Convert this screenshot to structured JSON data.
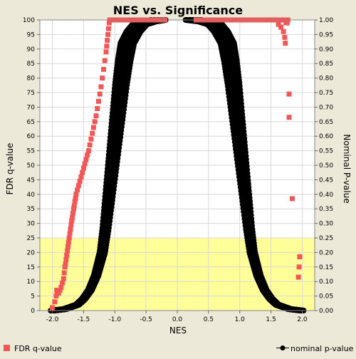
{
  "chart_data": {
    "type": "scatter",
    "title": "NES vs. Significance",
    "xlabel": "NES",
    "ylabel_left": "FDR q-value",
    "ylabel_right": "Nominal P-value",
    "xlim": [
      -2.2,
      2.2
    ],
    "ylim_left": [
      0,
      100
    ],
    "ylim_right": [
      0,
      1.0
    ],
    "x_ticks": [
      -2.0,
      -1.5,
      -1.0,
      -0.5,
      0.0,
      0.5,
      1.0,
      1.5,
      2.0
    ],
    "x_tick_labels": [
      "-2.0",
      "-1.5",
      "-1.0",
      "-0.5",
      "0.0",
      "0.5",
      "1.0",
      "1.5",
      "2.0"
    ],
    "y_left_ticks": [
      0,
      5,
      10,
      15,
      20,
      25,
      30,
      35,
      40,
      45,
      50,
      55,
      60,
      65,
      70,
      75,
      80,
      85,
      90,
      95,
      100
    ],
    "y_left_tick_labels": [
      "0",
      "5",
      "10",
      "15",
      "20",
      "25",
      "30",
      "35",
      "40",
      "45",
      "50",
      "55",
      "60",
      "65",
      "70",
      "75",
      "80",
      "85",
      "90",
      "95",
      "100"
    ],
    "y_right_ticks": [
      0,
      0.05,
      0.1,
      0.15,
      0.2,
      0.25,
      0.3,
      0.35,
      0.4,
      0.45,
      0.5,
      0.55,
      0.6,
      0.65,
      0.7,
      0.75,
      0.8,
      0.85,
      0.9,
      0.95,
      1.0
    ],
    "y_right_tick_labels": [
      "0.00",
      "0.05",
      "0.10",
      "0.15",
      "0.20",
      "0.25",
      "0.30",
      "0.35",
      "0.40",
      "0.45",
      "0.50",
      "0.55",
      "0.60",
      "0.65",
      "0.70",
      "0.75",
      "0.80",
      "0.85",
      "0.90",
      "0.95",
      "1.00"
    ],
    "highlight_band": {
      "y_from": 0,
      "y_to": 25,
      "color": "#ffff99"
    },
    "grid": true,
    "legend_placement": "bottom",
    "series": [
      {
        "name": "FDR q-value",
        "color": "#f25757",
        "marker": "square",
        "axis": "left",
        "points": [
          [
            -2.0,
            1
          ],
          [
            -1.96,
            3
          ],
          [
            -1.94,
            5
          ],
          [
            -1.93,
            7
          ],
          [
            -1.92,
            6
          ],
          [
            -1.91,
            6.5
          ],
          [
            -1.9,
            6
          ],
          [
            -1.88,
            7
          ],
          [
            -1.86,
            8
          ],
          [
            -1.84,
            9.5
          ],
          [
            -1.82,
            11
          ],
          [
            -1.81,
            13
          ],
          [
            -1.8,
            15
          ],
          [
            -1.79,
            16
          ],
          [
            -1.78,
            17.5
          ],
          [
            -1.77,
            19
          ],
          [
            -1.76,
            20.5
          ],
          [
            -1.75,
            22
          ],
          [
            -1.74,
            23.5
          ],
          [
            -1.73,
            25
          ],
          [
            -1.72,
            26.5
          ],
          [
            -1.71,
            28
          ],
          [
            -1.7,
            29.5
          ],
          [
            -1.69,
            31
          ],
          [
            -1.68,
            32
          ],
          [
            -1.67,
            33.5
          ],
          [
            -1.66,
            35
          ],
          [
            -1.65,
            36
          ],
          [
            -1.64,
            37.5
          ],
          [
            -1.63,
            38.5
          ],
          [
            -1.62,
            40
          ],
          [
            -1.6,
            41.5
          ],
          [
            -1.58,
            43
          ],
          [
            -1.56,
            44.5
          ],
          [
            -1.54,
            46
          ],
          [
            -1.52,
            47.5
          ],
          [
            -1.5,
            49
          ],
          [
            -1.48,
            50.5
          ],
          [
            -1.46,
            52
          ],
          [
            -1.44,
            53.5
          ],
          [
            -1.42,
            55
          ],
          [
            -1.4,
            57
          ],
          [
            -1.38,
            59
          ],
          [
            -1.36,
            61
          ],
          [
            -1.34,
            63
          ],
          [
            -1.32,
            65
          ],
          [
            -1.3,
            67
          ],
          [
            -1.28,
            69.5
          ],
          [
            -1.26,
            72
          ],
          [
            -1.24,
            74.5
          ],
          [
            -1.22,
            77
          ],
          [
            -1.2,
            80
          ],
          [
            -1.18,
            83
          ],
          [
            -1.16,
            86
          ],
          [
            -1.14,
            89
          ],
          [
            -1.13,
            91
          ],
          [
            -1.12,
            93
          ],
          [
            -1.11,
            95
          ],
          [
            -1.1,
            97
          ],
          [
            -1.09,
            99
          ],
          [
            -1.08,
            100
          ],
          [
            -1.05,
            100
          ],
          [
            -1.0,
            100
          ],
          [
            -0.95,
            100
          ],
          [
            -0.9,
            100
          ],
          [
            -0.85,
            100
          ],
          [
            -0.8,
            100
          ],
          [
            -0.75,
            100
          ],
          [
            -0.7,
            100
          ],
          [
            -0.65,
            100
          ],
          [
            -0.6,
            100
          ],
          [
            -0.55,
            100
          ],
          [
            -0.5,
            100
          ],
          [
            -0.45,
            100
          ],
          [
            -0.4,
            100
          ],
          [
            -0.35,
            100
          ],
          [
            -0.3,
            100
          ],
          [
            -0.25,
            100
          ],
          [
            -0.2,
            100
          ],
          [
            0.3,
            100
          ],
          [
            0.35,
            100
          ],
          [
            0.4,
            100
          ],
          [
            0.45,
            100
          ],
          [
            0.5,
            100
          ],
          [
            0.55,
            100
          ],
          [
            0.6,
            100
          ],
          [
            0.65,
            100
          ],
          [
            0.7,
            100
          ],
          [
            0.75,
            100
          ],
          [
            0.8,
            100
          ],
          [
            0.85,
            100
          ],
          [
            0.9,
            100
          ],
          [
            0.95,
            100
          ],
          [
            1.0,
            100
          ],
          [
            1.05,
            100
          ],
          [
            1.1,
            100
          ],
          [
            1.15,
            100
          ],
          [
            1.2,
            100
          ],
          [
            1.25,
            100
          ],
          [
            1.3,
            100
          ],
          [
            1.35,
            100
          ],
          [
            1.4,
            100
          ],
          [
            1.45,
            100
          ],
          [
            1.5,
            100
          ],
          [
            1.55,
            100
          ],
          [
            1.6,
            100
          ],
          [
            1.65,
            100
          ],
          [
            1.7,
            100
          ],
          [
            1.72,
            100
          ],
          [
            1.74,
            99
          ],
          [
            1.76,
            99
          ],
          [
            1.77,
            100
          ],
          [
            1.62,
            98.5
          ],
          [
            1.66,
            97.5
          ],
          [
            1.7,
            96
          ],
          [
            1.72,
            94
          ],
          [
            1.73,
            92
          ],
          [
            1.79,
            74.5
          ],
          [
            1.79,
            66.5
          ],
          [
            1.84,
            38.5
          ],
          [
            1.96,
            18.5
          ],
          [
            1.95,
            15
          ],
          [
            1.94,
            11.5
          ]
        ]
      },
      {
        "name": "nominal p-value",
        "color": "#000000",
        "marker": "circle",
        "axis": "right",
        "band_left": [
          [
            -2.0,
            0.0
          ],
          [
            -1.8,
            0.005
          ],
          [
            -1.6,
            0.02
          ],
          [
            -1.5,
            0.04
          ],
          [
            -1.4,
            0.07
          ],
          [
            -1.3,
            0.12
          ],
          [
            -1.2,
            0.2
          ],
          [
            -1.15,
            0.28
          ],
          [
            -1.1,
            0.38
          ],
          [
            -1.05,
            0.48
          ],
          [
            -1.0,
            0.58
          ],
          [
            -0.95,
            0.68
          ],
          [
            -0.9,
            0.78
          ],
          [
            -0.85,
            0.86
          ],
          [
            -0.8,
            0.92
          ],
          [
            -0.7,
            0.96
          ],
          [
            -0.6,
            0.985
          ],
          [
            -0.45,
            0.995
          ],
          [
            -0.3,
            1.0
          ]
        ],
        "band_right": [
          [
            0.25,
            1.0
          ],
          [
            0.45,
            0.995
          ],
          [
            0.6,
            0.985
          ],
          [
            0.7,
            0.96
          ],
          [
            0.8,
            0.92
          ],
          [
            0.85,
            0.86
          ],
          [
            0.9,
            0.78
          ],
          [
            0.95,
            0.68
          ],
          [
            1.0,
            0.58
          ],
          [
            1.05,
            0.48
          ],
          [
            1.1,
            0.38
          ],
          [
            1.15,
            0.28
          ],
          [
            1.2,
            0.2
          ],
          [
            1.3,
            0.12
          ],
          [
            1.4,
            0.07
          ],
          [
            1.5,
            0.04
          ],
          [
            1.6,
            0.02
          ],
          [
            1.8,
            0.005
          ],
          [
            2.0,
            0.0
          ]
        ],
        "center_line": [
          [
            -0.3,
            1.0
          ],
          [
            0.3,
            1.0
          ]
        ]
      }
    ]
  }
}
